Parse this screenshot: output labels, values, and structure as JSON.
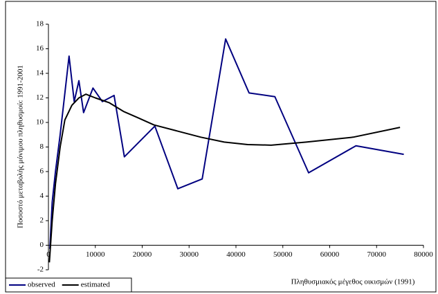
{
  "chart_data": {
    "type": "line",
    "x_label": "Πληθυσμιακός μέγεθος οικισμών (1991)",
    "y_label": "Ποσοστό μεταβολής μόνιμου πληθυσμού: 1991-2001",
    "xlim": [
      0,
      80000
    ],
    "xticks": [
      0,
      10000,
      20000,
      30000,
      40000,
      50000,
      60000,
      70000,
      80000
    ],
    "ylim": [
      -2,
      18
    ],
    "yticks": [
      -2,
      0,
      2,
      4,
      6,
      8,
      10,
      12,
      14,
      16,
      18
    ],
    "grid": false,
    "legend": "bottom-left",
    "series": [
      {
        "name": "observed",
        "color": "#000080",
        "x": [
          300,
          800,
          1500,
          2500,
          4400,
          5500,
          6500,
          7500,
          9500,
          11500,
          14000,
          16200,
          18800,
          22700,
          27600,
          32800,
          37800,
          42800,
          48300,
          55500,
          65600,
          75800
        ],
        "values": [
          -0.3,
          3.5,
          6.0,
          9.0,
          15.4,
          11.7,
          13.4,
          10.8,
          12.8,
          11.7,
          12.2,
          7.2,
          8.2,
          9.7,
          4.6,
          5.4,
          16.8,
          12.4,
          12.1,
          5.9,
          8.1,
          7.4
        ]
      },
      {
        "name": "estimated",
        "color": "#000000",
        "x": [
          200,
          800,
          1500,
          2500,
          3500,
          5000,
          6500,
          8000,
          10000,
          13000,
          16000,
          19000,
          22500,
          27500,
          32500,
          37500,
          42500,
          47500,
          55000,
          65000,
          75000
        ],
        "values": [
          -1.4,
          2.0,
          5.0,
          8.0,
          10.2,
          11.4,
          12.0,
          12.3,
          12.0,
          11.6,
          10.9,
          10.4,
          9.8,
          9.3,
          8.8,
          8.4,
          8.2,
          8.15,
          8.4,
          8.8,
          9.6
        ]
      }
    ]
  }
}
